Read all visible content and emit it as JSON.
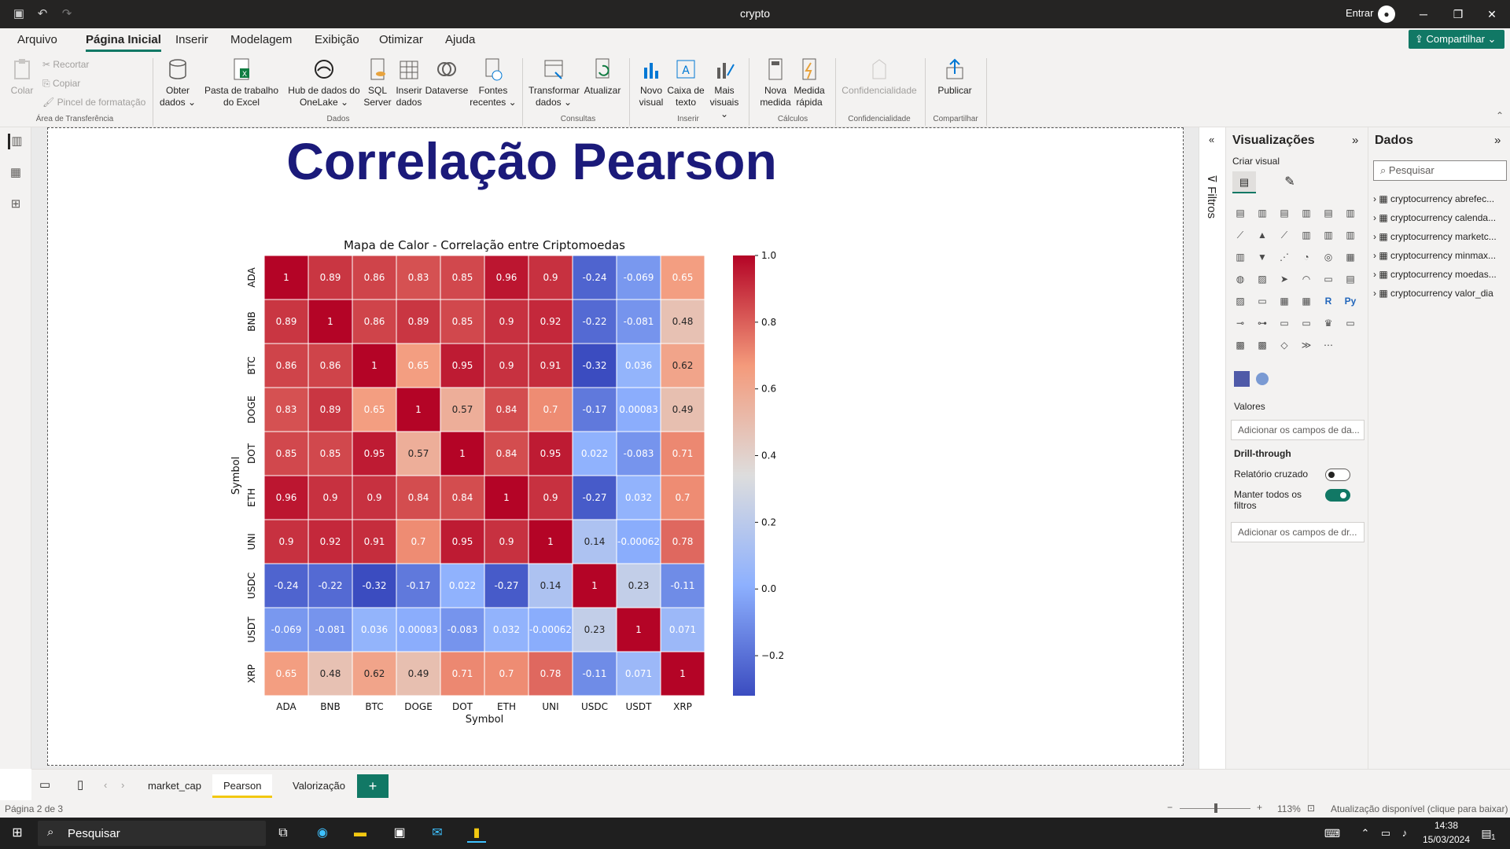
{
  "window": {
    "title": "crypto",
    "signin": "Entrar"
  },
  "menu": [
    "Arquivo",
    "Página Inicial",
    "Inserir",
    "Modelagem",
    "Exibição",
    "Otimizar",
    "Ajuda"
  ],
  "share_label": "Compartilhar",
  "ribbon": {
    "clipboard": {
      "paste": "Colar",
      "cut": "Recortar",
      "copy": "Copiar",
      "painter": "Pincel de formatação",
      "group": "Área de Transferência"
    },
    "data": {
      "get": "Obter dados",
      "excel": "Pasta de trabalho do Excel",
      "hub": "Hub de dados do OneLake",
      "sql": "SQL Server",
      "enter": "Inserir dados",
      "dataverse": "Dataverse",
      "recent": "Fontes recentes",
      "group": "Dados"
    },
    "queries": {
      "transform": "Transformar dados",
      "refresh": "Atualizar",
      "group": "Consultas"
    },
    "insert": {
      "newvisual": "Novo visual",
      "textbox": "Caixa de texto",
      "morevisuals": "Mais visuais",
      "group": "Inserir"
    },
    "calc": {
      "newmeasure": "Nova medida",
      "quickmeasure": "Medida rápida",
      "group": "Cálculos"
    },
    "sens": {
      "label": "Confidencialidade",
      "group": "Confidencialidade"
    },
    "share": {
      "publish": "Publicar",
      "group": "Compartilhar"
    }
  },
  "report_title": "Correlação Pearson",
  "chart_data": {
    "type": "heatmap",
    "title": "Mapa de Calor - Correlação entre Criptomoedas",
    "xlabel": "Symbol",
    "ylabel": "Symbol",
    "x_categories": [
      "ADA",
      "BNB",
      "BTC",
      "DOGE",
      "DOT",
      "ETH",
      "UNI",
      "USDC",
      "USDT",
      "XRP"
    ],
    "y_categories": [
      "ADA",
      "BNB",
      "BTC",
      "DOGE",
      "DOT",
      "ETH",
      "UNI",
      "USDC",
      "USDT",
      "XRP"
    ],
    "values": [
      [
        1,
        0.89,
        0.86,
        0.83,
        0.85,
        0.96,
        0.9,
        -0.24,
        -0.069,
        0.65
      ],
      [
        0.89,
        1,
        0.86,
        0.89,
        0.85,
        0.9,
        0.92,
        -0.22,
        -0.081,
        0.48
      ],
      [
        0.86,
        0.86,
        1,
        0.65,
        0.95,
        0.9,
        0.91,
        -0.32,
        0.036,
        0.62
      ],
      [
        0.83,
        0.89,
        0.65,
        1,
        0.57,
        0.84,
        0.7,
        -0.17,
        0.00083,
        0.49
      ],
      [
        0.85,
        0.85,
        0.95,
        0.57,
        1,
        0.84,
        0.95,
        0.022,
        -0.083,
        0.71
      ],
      [
        0.96,
        0.9,
        0.9,
        0.84,
        0.84,
        1,
        0.9,
        -0.27,
        0.032,
        0.7
      ],
      [
        0.9,
        0.92,
        0.91,
        0.7,
        0.95,
        0.9,
        1,
        0.14,
        -0.00062,
        0.78
      ],
      [
        -0.24,
        -0.22,
        -0.32,
        -0.17,
        0.022,
        -0.27,
        0.14,
        1,
        0.23,
        -0.11
      ],
      [
        -0.069,
        -0.081,
        0.036,
        0.00083,
        -0.083,
        0.032,
        -0.00062,
        0.23,
        1,
        0.071
      ],
      [
        0.65,
        0.48,
        0.62,
        0.49,
        0.71,
        0.7,
        0.78,
        -0.11,
        0.071,
        1
      ]
    ],
    "colorbar": {
      "ticks": [
        "1.0",
        "0.8",
        "0.6",
        "0.4",
        "0.2",
        "0.0",
        "−0.2"
      ],
      "range": [
        -0.32,
        1.0
      ]
    },
    "colormap": "coolwarm"
  },
  "filters_label": "Filtros",
  "viz": {
    "title": "Visualizações",
    "build": "Criar visual",
    "more": "···",
    "values": "Valores",
    "values_well": "Adicionar os campos de da...",
    "drill": "Drill-through",
    "cross": "Relatório cruzado",
    "keep": "Manter todos os filtros",
    "drill_well": "Adicionar os campos de dr..."
  },
  "data": {
    "title": "Dados",
    "search": "Pesquisar",
    "tables": [
      "cryptocurrency abrefec...",
      "cryptocurrency calenda...",
      "cryptocurrency marketc...",
      "cryptocurrency minmax...",
      "cryptocurrency moedas...",
      "cryptocurrency valor_dia"
    ]
  },
  "tabs": [
    "market_cap",
    "Pearson",
    "Valorização"
  ],
  "status": {
    "page": "Página 2 de 3",
    "zoom": "113%",
    "update": "Atualização disponível (clique para baixar)"
  },
  "taskbar": {
    "search": "Pesquisar",
    "time": "14:38",
    "date": "15/03/2024",
    "notif": "1"
  }
}
